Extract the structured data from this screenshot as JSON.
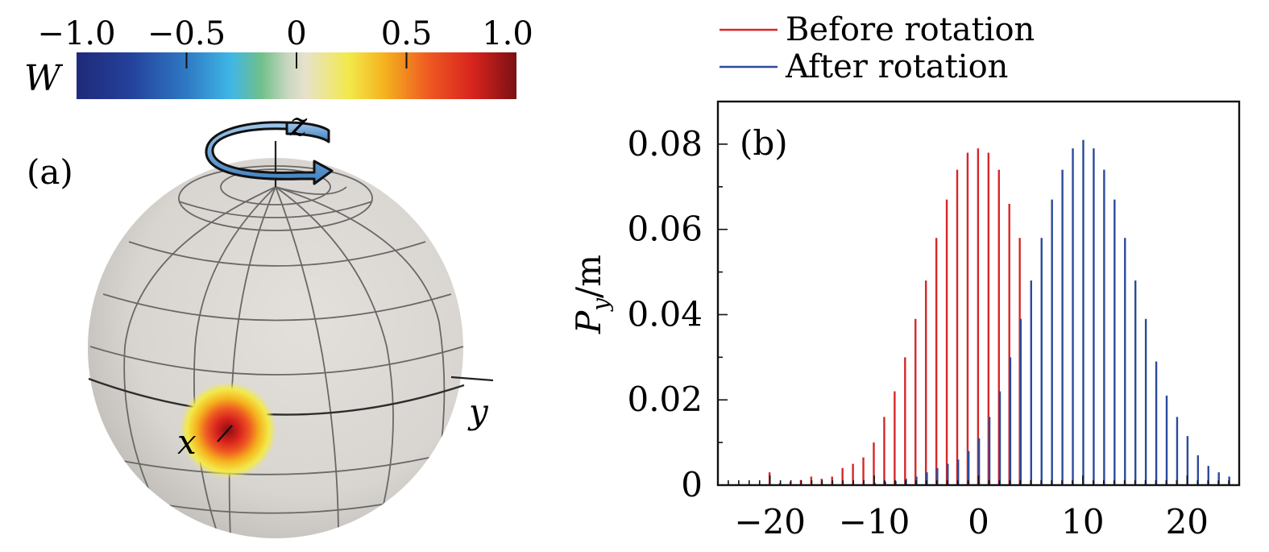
{
  "colorbar": {
    "label": "W",
    "ticks": [
      "−1.0",
      "−0.5",
      "0",
      "0.5",
      "1.0"
    ],
    "tick_values": [
      -1.0,
      -0.5,
      0,
      0.5,
      1.0
    ]
  },
  "panel_a": {
    "label": "(a)",
    "axis_z": "z",
    "axis_y": "y",
    "axis_x": "x"
  },
  "chart_data": {
    "type": "bar",
    "panel_label": "(b)",
    "xlabel": "",
    "ylabel_main": "P",
    "ylabel_sub": "y",
    "ylabel_suffix": "/m",
    "xlim": [
      -25,
      25
    ],
    "ylim": [
      0,
      0.09
    ],
    "xticks": [
      -20,
      -10,
      0,
      10,
      20
    ],
    "xtick_labels": [
      "−20",
      "−10",
      "0",
      "10",
      "20"
    ],
    "yticks": [
      0,
      0.02,
      0.04,
      0.06,
      0.08
    ],
    "ytick_labels": [
      "0",
      "0.02",
      "0.04",
      "0.06",
      "0.08"
    ],
    "legend": [
      "Before rotation",
      "After rotation"
    ],
    "series": [
      {
        "name": "Before rotation",
        "color": "#d62728",
        "x": [
          -20,
          -19,
          -18,
          -17,
          -16,
          -15,
          -14,
          -13,
          -12,
          -11,
          -10,
          -9,
          -8,
          -7,
          -6,
          -5,
          -4,
          -3,
          -2,
          -1,
          0,
          1,
          2,
          3,
          4
        ],
        "values": [
          0.003,
          0.0005,
          0.0008,
          0.0012,
          0.002,
          0.0015,
          0.002,
          0.004,
          0.005,
          0.0065,
          0.01,
          0.016,
          0.022,
          0.03,
          0.039,
          0.048,
          0.058,
          0.067,
          0.074,
          0.078,
          0.079,
          0.078,
          0.074,
          0.066,
          0.058
        ]
      },
      {
        "name": "After rotation",
        "color": "#2b4a9a",
        "x": [
          -10,
          -9,
          -8,
          -7,
          -6,
          -5,
          -4,
          -3,
          -2,
          -1,
          0,
          1,
          2,
          3,
          4,
          5,
          6,
          7,
          8,
          9,
          10,
          11,
          12,
          13,
          14,
          15,
          16,
          17,
          18,
          19,
          20,
          21,
          22,
          23,
          24
        ],
        "values": [
          0.0005,
          0.0008,
          0.001,
          0.0015,
          0.002,
          0.003,
          0.004,
          0.005,
          0.006,
          0.008,
          0.011,
          0.016,
          0.022,
          0.03,
          0.039,
          0.048,
          0.058,
          0.067,
          0.074,
          0.079,
          0.081,
          0.079,
          0.074,
          0.067,
          0.058,
          0.048,
          0.039,
          0.029,
          0.021,
          0.016,
          0.0115,
          0.007,
          0.0045,
          0.003,
          0.002
        ]
      }
    ]
  }
}
